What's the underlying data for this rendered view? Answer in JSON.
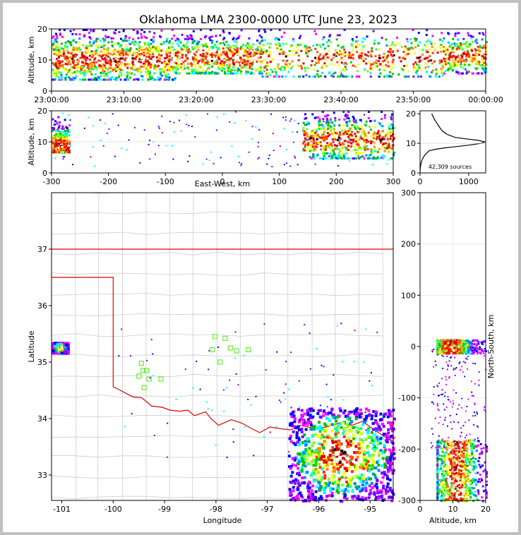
{
  "title": "Oklahoma LMA 2300-0000 UTC June 23, 2023",
  "chart_data": [
    {
      "id": "altitude-vs-time",
      "type": "scatter",
      "ylabel": "Altitude, km",
      "ylim": [
        0,
        20
      ],
      "yticks": [
        "0",
        "10",
        "20"
      ],
      "xticks": [
        "23:00:00",
        "23:10:00",
        "23:20:00",
        "23:30:00",
        "23:40:00",
        "23:50:00",
        "00:00:00"
      ],
      "xlim_minutes": [
        0,
        60
      ],
      "clusters": [
        {
          "x0": 0,
          "x1": 17,
          "y0": 4,
          "y1": 20,
          "core_y": 10.5,
          "density": "high"
        },
        {
          "x0": 17,
          "x1": 29,
          "y0": 6,
          "y1": 20,
          "core_y": 11,
          "density": "medium"
        },
        {
          "x0": 29,
          "x1": 54,
          "y0": 5,
          "y1": 20,
          "core_y": 11,
          "density": "medium"
        },
        {
          "x0": 54,
          "x1": 60,
          "y0": 6,
          "y1": 19,
          "core_y": 12,
          "density": "low"
        }
      ]
    },
    {
      "id": "altitude-vs-east-west",
      "type": "scatter",
      "xlabel": "East-West, km",
      "ylabel": "Altitude, km",
      "xlim": [
        -300,
        300
      ],
      "ylim": [
        0,
        20
      ],
      "xticks": [
        "-300",
        "-200",
        "-100",
        "0",
        "100",
        "200",
        "300"
      ],
      "yticks": [
        "0",
        "10",
        "20"
      ],
      "clusters": [
        {
          "x0": -300,
          "x1": -270,
          "y0": 7,
          "y1": 20,
          "core_y": 9,
          "density": "medium"
        },
        {
          "x0": 140,
          "x1": 300,
          "y0": 5,
          "y1": 20,
          "core_y": 11,
          "density": "high"
        }
      ]
    },
    {
      "id": "altitude-histogram",
      "type": "line",
      "xticks": [
        "0",
        "1000"
      ],
      "yticks": [
        "0",
        "10",
        "20"
      ],
      "xlim": [
        0,
        1350
      ],
      "ylim": [
        0,
        21
      ],
      "annotation": "42,309 sources",
      "profile": [
        [
          0,
          0.5
        ],
        [
          5,
          1.5
        ],
        [
          12,
          2.5
        ],
        [
          25,
          3.5
        ],
        [
          45,
          4.5
        ],
        [
          75,
          5.5
        ],
        [
          120,
          6.5
        ],
        [
          190,
          7.5
        ],
        [
          320,
          8
        ],
        [
          520,
          8.5
        ],
        [
          800,
          9
        ],
        [
          1050,
          9.5
        ],
        [
          1260,
          10
        ],
        [
          1330,
          10.5
        ],
        [
          1200,
          11
        ],
        [
          950,
          11.5
        ],
        [
          720,
          12
        ],
        [
          560,
          13
        ],
        [
          470,
          14
        ],
        [
          420,
          15
        ],
        [
          380,
          16
        ],
        [
          340,
          17
        ],
        [
          300,
          18
        ],
        [
          270,
          19
        ],
        [
          240,
          20
        ]
      ]
    },
    {
      "id": "plan-view",
      "type": "scatter",
      "xlabel": "Longitude",
      "ylabel": "Latitude",
      "xlim": [
        -101.2,
        -94.55
      ],
      "ylim": [
        32.55,
        38
      ],
      "xticks": [
        "-101",
        "-100",
        "-99",
        "-98",
        "-97",
        "-96",
        "-95"
      ],
      "yticks": [
        "33",
        "34",
        "35",
        "36",
        "37"
      ],
      "stations": [
        [
          -99.5,
          34.75
        ],
        [
          -99.42,
          34.85
        ],
        [
          -99.35,
          34.85
        ],
        [
          -99.3,
          34.7
        ],
        [
          -99.4,
          34.55
        ],
        [
          -99.45,
          34.98
        ],
        [
          -99.07,
          34.7
        ],
        [
          -98.02,
          35.45
        ],
        [
          -97.82,
          35.42
        ],
        [
          -98.07,
          35.22
        ],
        [
          -97.92,
          35.0
        ],
        [
          -97.72,
          35.25
        ],
        [
          -97.37,
          35.22
        ],
        [
          -97.6,
          35.2
        ]
      ],
      "clusters": [
        {
          "x0": -101.2,
          "x1": -100.9,
          "y0": 35.18,
          "y1": 35.36,
          "density": "medium"
        },
        {
          "x0": -96.6,
          "x1": -94.55,
          "y0": 32.55,
          "y1": 34.2,
          "density": "high"
        }
      ]
    },
    {
      "id": "north-south-vs-altitude",
      "type": "scatter",
      "xlabel": "Altitude, km",
      "ylabel": "North-South, km",
      "xlim": [
        0,
        20
      ],
      "ylim": [
        -300,
        300
      ],
      "xticks": [
        "0",
        "10",
        "20"
      ],
      "yticks": [
        "-300",
        "-200",
        "-100",
        "0",
        "100",
        "200",
        "300"
      ],
      "clusters": [
        {
          "x0": 5,
          "x1": 20,
          "y0": -12,
          "y1": 15,
          "core_x": 9,
          "density": "high"
        },
        {
          "x0": 5,
          "x1": 20,
          "y0": -300,
          "y1": -180,
          "core_x": 11,
          "density": "high"
        }
      ]
    }
  ]
}
